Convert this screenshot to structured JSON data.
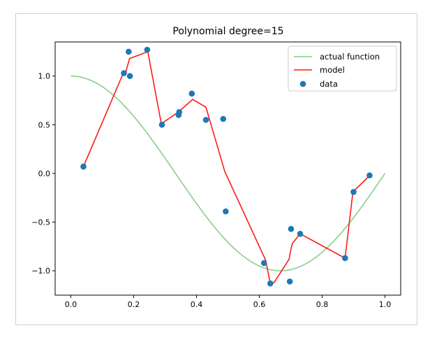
{
  "chart_data": {
    "type": "line",
    "title": "Polynomial degree=15",
    "xlabel": "",
    "ylabel": "",
    "xlim": [
      -0.05,
      1.05
    ],
    "ylim": [
      -1.25,
      1.35
    ],
    "x_ticks": [
      0.0,
      0.2,
      0.4,
      0.6,
      0.8,
      1.0
    ],
    "x_tick_labels": [
      "0.0",
      "0.2",
      "0.4",
      "0.6",
      "0.8",
      "1.0"
    ],
    "y_ticks": [
      -1.0,
      -0.5,
      0.0,
      0.5,
      1.0
    ],
    "y_tick_labels": [
      "−1.0",
      "−0.5",
      "0.0",
      "0.5",
      "1.0"
    ],
    "grid": false,
    "legend_position": "top-right",
    "series": [
      {
        "name": "actual function",
        "kind": "line",
        "color": "#8ccc8c",
        "function": "cos(1.5*pi*x)",
        "x_range": [
          0,
          1
        ]
      },
      {
        "name": "model",
        "kind": "line",
        "color": "#ff1a1a",
        "x": [
          0.04,
          0.167,
          0.173,
          0.187,
          0.245,
          0.288,
          0.342,
          0.388,
          0.43,
          0.49,
          0.62,
          0.635,
          0.647,
          0.695,
          0.698,
          0.705,
          0.73,
          0.873,
          0.898,
          0.952
        ],
        "y": [
          0.07,
          1.03,
          1.02,
          1.18,
          1.25,
          0.51,
          0.63,
          0.76,
          0.68,
          0.02,
          -0.89,
          -1.13,
          -1.12,
          -0.88,
          -0.82,
          -0.72,
          -0.62,
          -0.87,
          -0.19,
          -0.02
        ]
      },
      {
        "name": "data",
        "kind": "scatter",
        "color": "#1f77b4",
        "x": [
          0.04,
          0.169,
          0.184,
          0.188,
          0.243,
          0.29,
          0.343,
          0.345,
          0.385,
          0.43,
          0.485,
          0.493,
          0.615,
          0.635,
          0.697,
          0.701,
          0.73,
          0.873,
          0.9,
          0.951
        ],
        "y": [
          0.07,
          1.03,
          1.25,
          1.0,
          1.27,
          0.5,
          0.6,
          0.63,
          0.82,
          0.55,
          0.56,
          -0.39,
          -0.92,
          -1.13,
          -1.11,
          -0.57,
          -0.62,
          -0.87,
          -0.19,
          -0.02
        ]
      }
    ]
  }
}
